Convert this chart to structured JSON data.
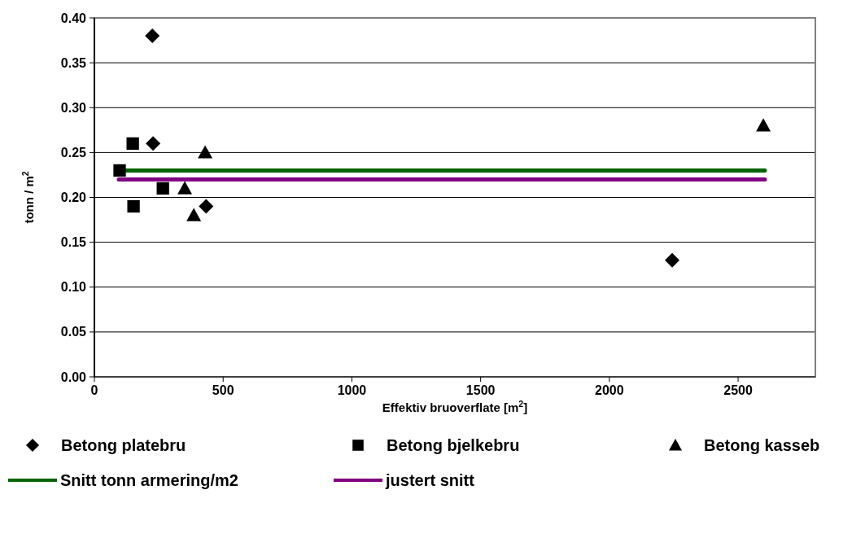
{
  "chart_data": {
    "type": "scatter",
    "xlabel": "Effektiv bruoverflate [m$^{2}$]",
    "ylabel": "tonn / m$^{2}$",
    "xlim": [
      0,
      2800
    ],
    "xticks": [
      0,
      500,
      1000,
      1500,
      2000,
      2500
    ],
    "ylim": [
      0,
      0.4
    ],
    "yticks": [
      {
        "value": 0,
        "label": "0.00"
      },
      {
        "value": 0.05,
        "label": "0.05"
      },
      {
        "value": 0.1,
        "label": "0.10"
      },
      {
        "value": 0.15,
        "label": "0.15"
      },
      {
        "value": 0.2,
        "label": "0.20"
      },
      {
        "value": 0.25,
        "label": "0.25"
      },
      {
        "value": 0.3,
        "label": "0.30"
      },
      {
        "value": 0.35,
        "label": "0.35"
      },
      {
        "value": 0.4,
        "label": "0.40"
      }
    ],
    "grid": "y",
    "legend": "bottom",
    "series": [
      {
        "name": "Snitt tonn armering/m2",
        "type": "line",
        "color": "#006400",
        "x": [
          95,
          2604
        ],
        "values": [
          0.23,
          0.23
        ]
      },
      {
        "name": "justert snitt",
        "type": "line",
        "color": "#800080",
        "x": [
          95,
          2604
        ],
        "values": [
          0.22,
          0.22
        ]
      },
      {
        "name": "Betong platebru",
        "color": "#000000",
        "marker": "diamond",
        "x": [
          225,
          228,
          434,
          2244
        ],
        "values": [
          0.38,
          0.26,
          0.19,
          0.13
        ]
      },
      {
        "name": "Betong bjelkebru",
        "color": "#000000",
        "marker": "square",
        "x": [
          149,
          98,
          266,
          152
        ],
        "values": [
          0.26,
          0.23,
          0.21,
          0.19
        ]
      },
      {
        "name": "Betong kasseb",
        "color": "#000000",
        "marker": "triangle",
        "x": [
          430,
          351,
          386,
          2598
        ],
        "values": [
          0.25,
          0.21,
          0.18,
          0.28
        ]
      }
    ]
  }
}
